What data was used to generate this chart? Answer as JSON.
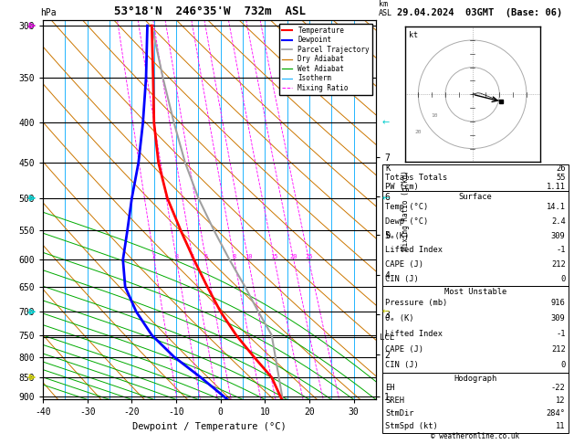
{
  "title_left": "53°18'N  246°35'W  732m  ASL",
  "title_right": "29.04.2024  03GMT  (Base: 06)",
  "ylabel_left": "hPa",
  "xlabel": "Dewpoint / Temperature (°C)",
  "pressure_levels": [
    300,
    350,
    400,
    450,
    500,
    550,
    600,
    650,
    700,
    750,
    800,
    850,
    900
  ],
  "pressure_ticks": [
    300,
    350,
    400,
    450,
    500,
    550,
    600,
    650,
    700,
    750,
    800,
    850,
    900
  ],
  "p_min_display": 295,
  "p_max_display": 908,
  "temp_min": -40,
  "temp_max": 35,
  "temp_ticks": [
    -40,
    -30,
    -20,
    -10,
    0,
    10,
    20,
    30
  ],
  "mixing_ratios": [
    2,
    3,
    4,
    5,
    8,
    10,
    15,
    20,
    25
  ],
  "km_ticks": [
    1,
    2,
    3,
    4,
    5,
    6,
    7
  ],
  "km_pressures": [
    900,
    795,
    705,
    627,
    558,
    497,
    443
  ],
  "lcl_pressure": 755,
  "lcl_label": "LCL",
  "background_color": "#ffffff",
  "temp_profile_x": [
    -15.5,
    -15.2,
    -15.0,
    -14.0,
    -12.0,
    -9.0,
    -6.0,
    -3.0,
    0.0,
    3.5,
    7.5,
    11.5,
    14.1
  ],
  "temp_profile_p": [
    300,
    350,
    400,
    450,
    500,
    550,
    600,
    650,
    700,
    750,
    800,
    850,
    916
  ],
  "dewp_profile_x": [
    -16.5,
    -16.8,
    -17.5,
    -18.5,
    -20.0,
    -21.0,
    -22.0,
    -21.5,
    -19.0,
    -15.5,
    -10.5,
    -4.5,
    2.4
  ],
  "dewp_profile_p": [
    300,
    350,
    400,
    450,
    500,
    550,
    600,
    650,
    700,
    750,
    800,
    850,
    916
  ],
  "parcel_x": [
    -15.5,
    -13.0,
    -10.5,
    -8.0,
    -5.0,
    -1.5,
    2.0,
    5.5,
    8.5,
    11.5,
    14.1
  ],
  "parcel_p": [
    300,
    350,
    400,
    450,
    500,
    550,
    600,
    650,
    700,
    750,
    916
  ],
  "temp_color": "#ff0000",
  "dewp_color": "#0000ff",
  "parcel_color": "#a0a0a0",
  "dry_adiabat_color": "#cc7700",
  "wet_adiabat_color": "#00aa00",
  "isotherm_color": "#00aaff",
  "mixing_ratio_color": "#ff00ff",
  "info_K": 26,
  "info_TT": 55,
  "info_PW": "1.11",
  "surf_temp": "14.1",
  "surf_dewp": "2.4",
  "surf_theta_e": 309,
  "surf_li": -1,
  "surf_cape": 212,
  "surf_cin": 0,
  "mu_pressure": 916,
  "mu_theta_e": 309,
  "mu_li": -1,
  "mu_cape": 212,
  "mu_cin": 0,
  "hodo_eh": -22,
  "hodo_sreh": 12,
  "hodo_stmdir": 284,
  "hodo_stmspd": 11,
  "wind_colors": [
    "#cc00cc",
    "#00cccc",
    "#00cccc",
    "#cccc00"
  ],
  "wind_pressures": [
    300,
    500,
    700,
    850
  ]
}
